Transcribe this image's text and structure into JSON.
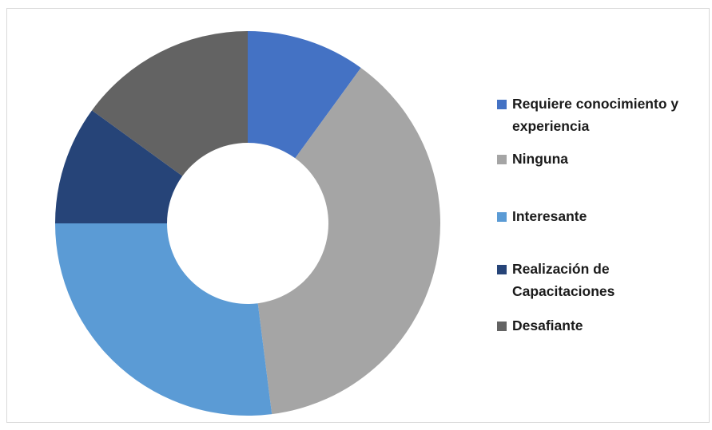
{
  "chart_data": {
    "type": "pie",
    "donut": true,
    "title": "",
    "legend_position": "right",
    "slices": [
      {
        "label": "Requiere conocimiento y experiencia",
        "value": 10,
        "color": "#4472c4"
      },
      {
        "label": "Ninguna",
        "value": 38,
        "color": "#a5a5a5"
      },
      {
        "label": "Interesante",
        "value": 27,
        "color": "#5b9bd5"
      },
      {
        "label": "Realización de Capacitaciones",
        "value": 10,
        "color": "#264478"
      },
      {
        "label": "Desafiante",
        "value": 15,
        "color": "#636363"
      }
    ]
  }
}
